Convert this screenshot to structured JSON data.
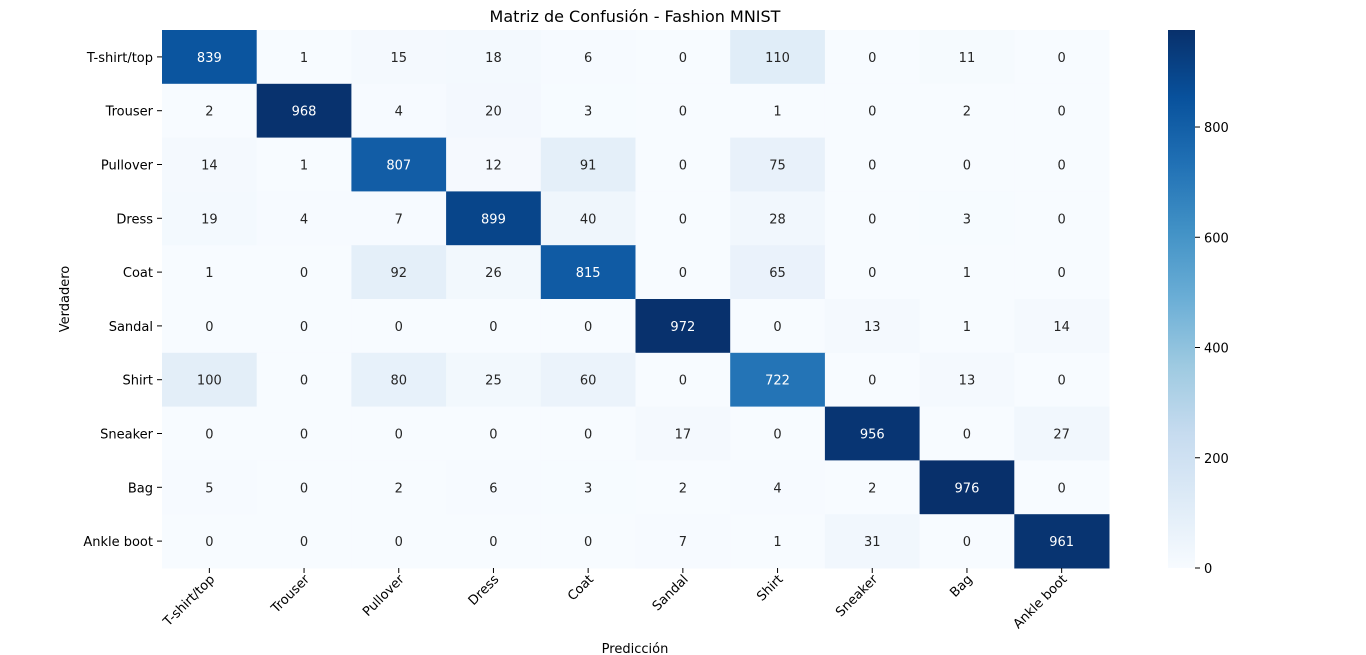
{
  "chart_data": {
    "type": "heatmap",
    "title": "Matriz de Confusión - Fashion MNIST",
    "xlabel": "Predicción",
    "ylabel": "Verdadero",
    "x_categories": [
      "T-shirt/top",
      "Trouser",
      "Pullover",
      "Dress",
      "Coat",
      "Sandal",
      "Shirt",
      "Sneaker",
      "Bag",
      "Ankle boot"
    ],
    "y_categories": [
      "T-shirt/top",
      "Trouser",
      "Pullover",
      "Dress",
      "Coat",
      "Sandal",
      "Shirt",
      "Sneaker",
      "Bag",
      "Ankle boot"
    ],
    "values": [
      [
        839,
        1,
        15,
        18,
        6,
        0,
        110,
        0,
        11,
        0
      ],
      [
        2,
        968,
        4,
        20,
        3,
        0,
        1,
        0,
        2,
        0
      ],
      [
        14,
        1,
        807,
        12,
        91,
        0,
        75,
        0,
        0,
        0
      ],
      [
        19,
        4,
        7,
        899,
        40,
        0,
        28,
        0,
        3,
        0
      ],
      [
        1,
        0,
        92,
        26,
        815,
        0,
        65,
        0,
        1,
        0
      ],
      [
        0,
        0,
        0,
        0,
        0,
        972,
        0,
        13,
        1,
        14
      ],
      [
        100,
        0,
        80,
        25,
        60,
        0,
        722,
        0,
        13,
        0
      ],
      [
        0,
        0,
        0,
        0,
        0,
        17,
        0,
        956,
        0,
        27
      ],
      [
        5,
        0,
        2,
        6,
        3,
        2,
        4,
        2,
        976,
        0
      ],
      [
        0,
        0,
        0,
        0,
        0,
        7,
        1,
        31,
        0,
        961
      ]
    ],
    "colormap": "Blues",
    "colorbar": {
      "range": [
        0,
        976
      ],
      "ticks": [
        0,
        200,
        400,
        600,
        800
      ]
    },
    "xtick_rotation": 45
  }
}
